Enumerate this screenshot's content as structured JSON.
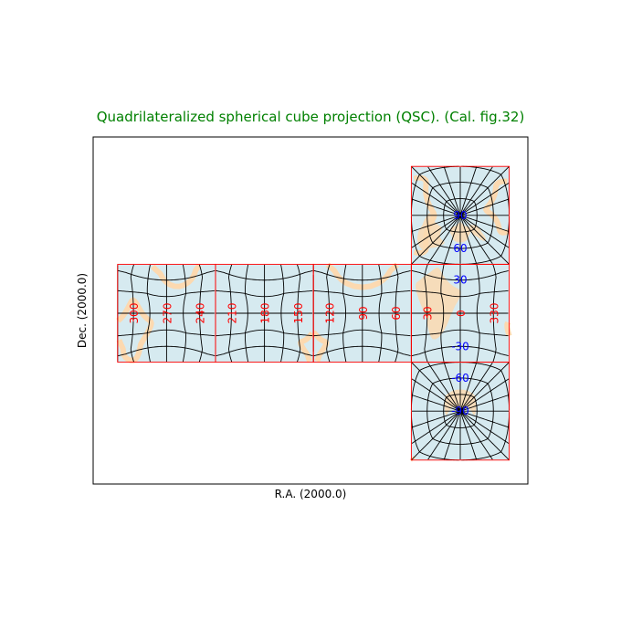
{
  "chart_data": {
    "type": "map",
    "title": "Quadrilateralized spherical cube projection (QSC). (Cal. fig.32)",
    "xlabel": "R.A. (2000.0)",
    "ylabel": "Dec. (2000.0)",
    "longitude_labels": [
      "300",
      "270",
      "240",
      "210",
      "180",
      "150",
      "120",
      "90",
      "60",
      "30",
      "0",
      "330"
    ],
    "latitude_labels": [
      "60",
      "30",
      "-30",
      "-60"
    ],
    "pole_labels": [
      "90",
      "-90"
    ],
    "graticule_spacing_deg": 15,
    "colors": {
      "title": "#008000",
      "ocean": "#d6eaf0",
      "land": "#fcd9b0",
      "graticule": "#000000",
      "face_border": "#ff0000",
      "longitude_label": "#ff0000",
      "latitude_label": "#0000ff",
      "frame": "#000000"
    }
  }
}
